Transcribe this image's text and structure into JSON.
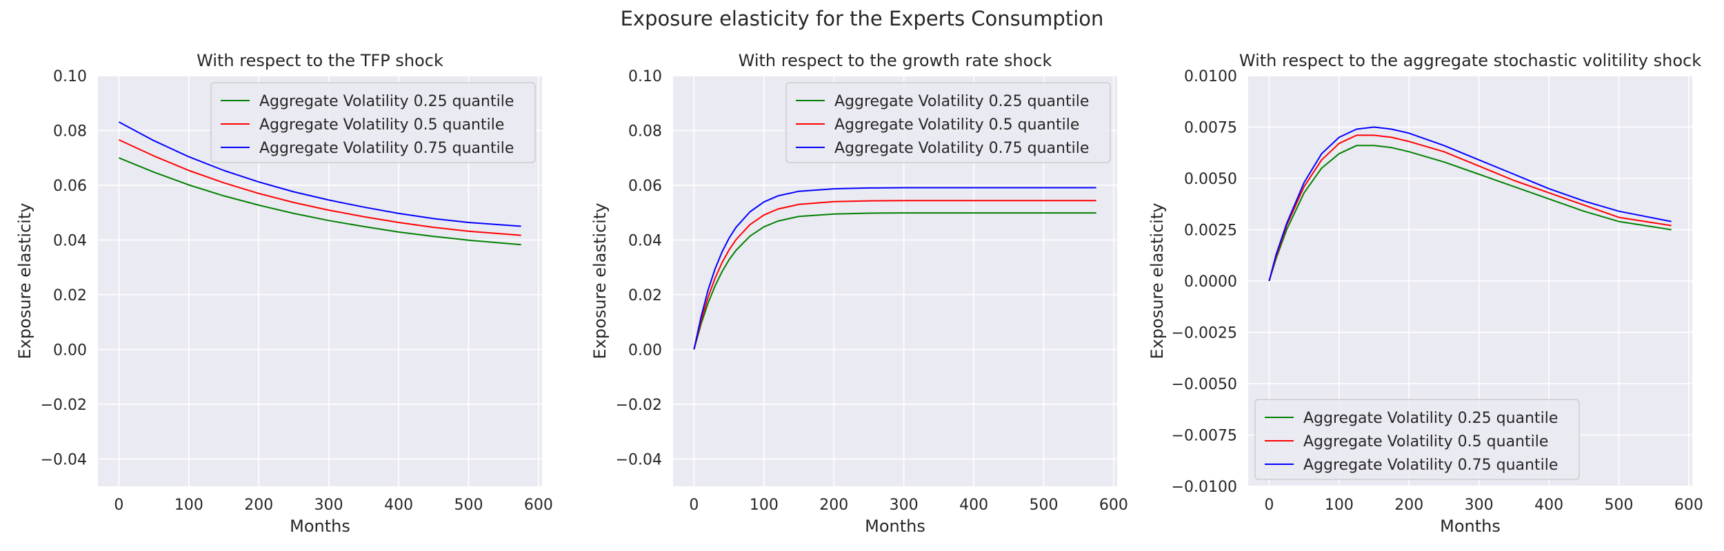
{
  "figure": {
    "suptitle": "Exposure elasticity for the Experts Consumption"
  },
  "chart_data": [
    {
      "type": "line",
      "title": "With respect to the TFP shock",
      "xlabel": "Months",
      "ylabel": "Exposure elasticity",
      "xlim": [
        -30,
        605
      ],
      "ylim": [
        -0.05,
        0.1
      ],
      "xticks": [
        0,
        100,
        200,
        300,
        400,
        500,
        600
      ],
      "yticks": [
        -0.04,
        -0.02,
        0.0,
        0.02,
        0.04,
        0.06,
        0.08,
        0.1
      ],
      "ytick_labels": [
        "−0.04",
        "−0.02",
        "0.00",
        "0.02",
        "0.04",
        "0.06",
        "0.08",
        "0.10"
      ],
      "grid": true,
      "legend": "top-right",
      "x": [
        0,
        50,
        100,
        150,
        200,
        250,
        300,
        350,
        400,
        450,
        500,
        575
      ],
      "series": [
        {
          "name": "Aggregate Volatility 0.25 quantile",
          "color": "#008000",
          "values": [
            0.07,
            0.0648,
            0.0601,
            0.0561,
            0.0527,
            0.0497,
            0.0471,
            0.0449,
            0.0429,
            0.0413,
            0.0399,
            0.0383
          ]
        },
        {
          "name": "Aggregate Volatility 0.5 quantile",
          "color": "#ff0000",
          "values": [
            0.0766,
            0.0707,
            0.0654,
            0.0609,
            0.057,
            0.0537,
            0.0509,
            0.0485,
            0.0464,
            0.0446,
            0.0432,
            0.0417
          ]
        },
        {
          "name": "Aggregate Volatility 0.75 quantile",
          "color": "#0000ff",
          "values": [
            0.0831,
            0.0763,
            0.0704,
            0.0654,
            0.0612,
            0.0576,
            0.0546,
            0.052,
            0.0497,
            0.0478,
            0.0464,
            0.045
          ]
        }
      ]
    },
    {
      "type": "line",
      "title": "With respect to the growth rate shock",
      "xlabel": "Months",
      "ylabel": "Exposure elasticity",
      "xlim": [
        -30,
        605
      ],
      "ylim": [
        -0.05,
        0.1
      ],
      "xticks": [
        0,
        100,
        200,
        300,
        400,
        500,
        600
      ],
      "yticks": [
        -0.04,
        -0.02,
        0.0,
        0.02,
        0.04,
        0.06,
        0.08,
        0.1
      ],
      "ytick_labels": [
        "−0.04",
        "−0.02",
        "0.00",
        "0.02",
        "0.04",
        "0.06",
        "0.08",
        "0.10"
      ],
      "grid": true,
      "legend": "top-right",
      "x": [
        0,
        10,
        20,
        30,
        40,
        50,
        60,
        80,
        100,
        120,
        150,
        200,
        250,
        300,
        400,
        500,
        575
      ],
      "series": [
        {
          "name": "Aggregate Volatility 0.25 quantile",
          "color": "#008000",
          "values": [
            0.0,
            0.0092,
            0.0169,
            0.0232,
            0.0284,
            0.0327,
            0.0362,
            0.0414,
            0.0448,
            0.0469,
            0.0486,
            0.0495,
            0.0498,
            0.0499,
            0.0499,
            0.0499,
            0.0499
          ]
        },
        {
          "name": "Aggregate Volatility 0.5 quantile",
          "color": "#ff0000",
          "values": [
            0.0,
            0.0104,
            0.019,
            0.026,
            0.0317,
            0.0363,
            0.0401,
            0.0456,
            0.0491,
            0.0513,
            0.053,
            0.054,
            0.0543,
            0.0544,
            0.0544,
            0.0544,
            0.0544
          ]
        },
        {
          "name": "Aggregate Volatility 0.75 quantile",
          "color": "#0000ff",
          "values": [
            0.0,
            0.0119,
            0.0216,
            0.0294,
            0.0356,
            0.0406,
            0.0446,
            0.0503,
            0.0539,
            0.0561,
            0.0578,
            0.0587,
            0.059,
            0.0591,
            0.0591,
            0.0591,
            0.0591
          ]
        }
      ]
    },
    {
      "type": "line",
      "title": "With respect to the aggregate stochastic volitility shock",
      "xlabel": "Months",
      "ylabel": "Exposure elasticity",
      "xlim": [
        -30,
        605
      ],
      "ylim": [
        -0.01,
        0.01
      ],
      "xticks": [
        0,
        100,
        200,
        300,
        400,
        500,
        600
      ],
      "yticks": [
        -0.01,
        -0.0075,
        -0.005,
        -0.0025,
        0.0,
        0.0025,
        0.005,
        0.0075,
        0.01
      ],
      "ytick_labels": [
        "−0.0100",
        "−0.0075",
        "−0.0050",
        "−0.0025",
        "0.0000",
        "0.0025",
        "0.0050",
        "0.0075",
        "0.0100"
      ],
      "grid": true,
      "legend": "bottom-left",
      "x": [
        0,
        10,
        25,
        50,
        75,
        100,
        125,
        150,
        175,
        200,
        250,
        300,
        350,
        400,
        450,
        500,
        575
      ],
      "series": [
        {
          "name": "Aggregate Volatility 0.25 quantile",
          "color": "#008000",
          "values": [
            0.0,
            0.0011,
            0.0025,
            0.0043,
            0.0055,
            0.0062,
            0.0066,
            0.0066,
            0.0065,
            0.0063,
            0.0058,
            0.0052,
            0.0046,
            0.004,
            0.0034,
            0.0029,
            0.0025
          ]
        },
        {
          "name": "Aggregate Volatility 0.5 quantile",
          "color": "#ff0000",
          "values": [
            0.0,
            0.0012,
            0.0027,
            0.0046,
            0.0059,
            0.0067,
            0.0071,
            0.0071,
            0.007,
            0.0068,
            0.0063,
            0.0056,
            0.0049,
            0.0043,
            0.0037,
            0.0031,
            0.0027
          ]
        },
        {
          "name": "Aggregate Volatility 0.75 quantile",
          "color": "#0000ff",
          "values": [
            0.0,
            0.0013,
            0.0028,
            0.0048,
            0.0062,
            0.007,
            0.0074,
            0.0075,
            0.0074,
            0.0072,
            0.0066,
            0.0059,
            0.0052,
            0.0045,
            0.0039,
            0.0034,
            0.0029
          ]
        }
      ]
    }
  ]
}
